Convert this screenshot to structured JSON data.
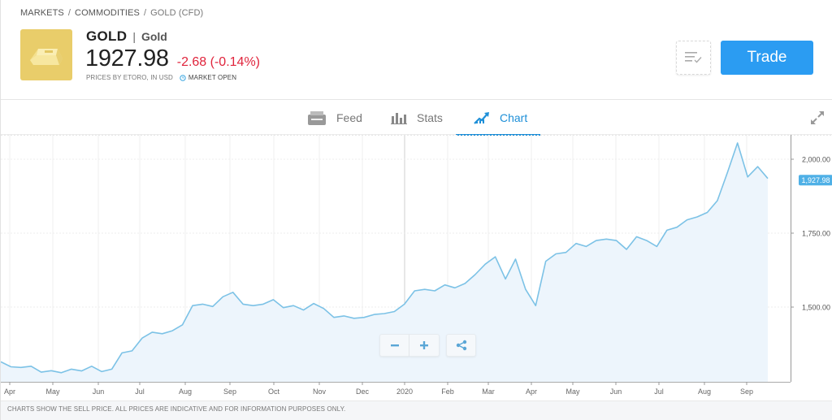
{
  "breadcrumb": [
    {
      "label": "MARKETS"
    },
    {
      "label": "COMMODITIES"
    },
    {
      "label": "GOLD (CFD)"
    }
  ],
  "breadcrumb_sep": "/",
  "instrument": {
    "symbol": "GOLD",
    "pipe": "|",
    "name": "Gold",
    "price": "1927.98",
    "change": "-2.68 (-0.14%)",
    "prices_note": "PRICES BY ETORO, IN USD",
    "market_status": "MARKET OPEN",
    "icon": "gold-bar-icon"
  },
  "actions": {
    "watchlist_icon": "watchlist-check-icon",
    "trade_label": "Trade"
  },
  "tabs": [
    {
      "label": "Feed",
      "icon": "feed-icon",
      "active": false
    },
    {
      "label": "Stats",
      "icon": "stats-bars-icon",
      "active": false
    },
    {
      "label": "Chart",
      "icon": "chart-trend-icon",
      "active": true
    }
  ],
  "colors": {
    "accent": "#1d8fd8",
    "trade_button": "#2b9cf2",
    "negative": "#e0243c",
    "line": "#7cc2e6",
    "fill": "#edf5fc",
    "logo_bg": "#e9cd6a"
  },
  "chart_controls": {
    "zoom_out": "−",
    "zoom_in": "+",
    "share_icon": "share-icon"
  },
  "footer_note": "CHARTS SHOW THE SELL PRICE. ALL PRICES ARE INDICATIVE AND FOR INFORMATION PURPOSES ONLY.",
  "chart_data": {
    "type": "area",
    "title": "",
    "xlabel": "",
    "ylabel": "",
    "x_ticks": [
      "Apr",
      "May",
      "Jun",
      "Jul",
      "Aug",
      "Sep",
      "Oct",
      "Nov",
      "Dec",
      "2020",
      "Feb",
      "Mar",
      "Apr",
      "May",
      "Jun",
      "Jul",
      "Aug",
      "Sep"
    ],
    "y_ticks": [
      "1,500.00",
      "1,750.00",
      "2,000.00"
    ],
    "ylim": [
      1270,
      2090
    ],
    "grid": true,
    "legend": "none",
    "current_value_label": "1,927.98",
    "x": [
      "2019-03-25",
      "2019-04-01",
      "2019-04-08",
      "2019-04-15",
      "2019-04-22",
      "2019-04-29",
      "2019-05-06",
      "2019-05-13",
      "2019-05-20",
      "2019-05-27",
      "2019-06-03",
      "2019-06-10",
      "2019-06-17",
      "2019-06-24",
      "2019-07-01",
      "2019-07-08",
      "2019-07-15",
      "2019-07-22",
      "2019-07-29",
      "2019-08-05",
      "2019-08-12",
      "2019-08-19",
      "2019-08-26",
      "2019-09-02",
      "2019-09-09",
      "2019-09-16",
      "2019-09-23",
      "2019-09-30",
      "2019-10-07",
      "2019-10-14",
      "2019-10-21",
      "2019-10-28",
      "2019-11-04",
      "2019-11-11",
      "2019-11-18",
      "2019-11-25",
      "2019-12-02",
      "2019-12-09",
      "2019-12-16",
      "2019-12-23",
      "2019-12-30",
      "2020-01-06",
      "2020-01-13",
      "2020-01-20",
      "2020-01-27",
      "2020-02-03",
      "2020-02-10",
      "2020-02-17",
      "2020-02-24",
      "2020-03-02",
      "2020-03-09",
      "2020-03-16",
      "2020-03-23",
      "2020-03-30",
      "2020-04-06",
      "2020-04-13",
      "2020-04-20",
      "2020-04-27",
      "2020-05-04",
      "2020-05-11",
      "2020-05-18",
      "2020-05-25",
      "2020-06-01",
      "2020-06-08",
      "2020-06-15",
      "2020-06-22",
      "2020-06-29",
      "2020-07-06",
      "2020-07-13",
      "2020-07-20",
      "2020-07-27",
      "2020-08-03",
      "2020-08-10",
      "2020-08-17",
      "2020-08-24",
      "2020-08-31",
      "2020-09-07"
    ],
    "values": [
      1315,
      1298,
      1296,
      1300,
      1280,
      1285,
      1278,
      1290,
      1284,
      1300,
      1282,
      1290,
      1345,
      1352,
      1395,
      1415,
      1410,
      1420,
      1440,
      1505,
      1510,
      1502,
      1535,
      1550,
      1510,
      1505,
      1510,
      1525,
      1498,
      1505,
      1490,
      1512,
      1495,
      1465,
      1470,
      1462,
      1465,
      1475,
      1478,
      1485,
      1510,
      1555,
      1560,
      1555,
      1575,
      1565,
      1580,
      1610,
      1645,
      1670,
      1595,
      1662,
      1560,
      1505,
      1655,
      1680,
      1685,
      1715,
      1705,
      1725,
      1730,
      1725,
      1695,
      1738,
      1725,
      1705,
      1760,
      1770,
      1795,
      1805,
      1820,
      1860,
      1955,
      2055,
      1940,
      1975,
      1935
    ]
  }
}
